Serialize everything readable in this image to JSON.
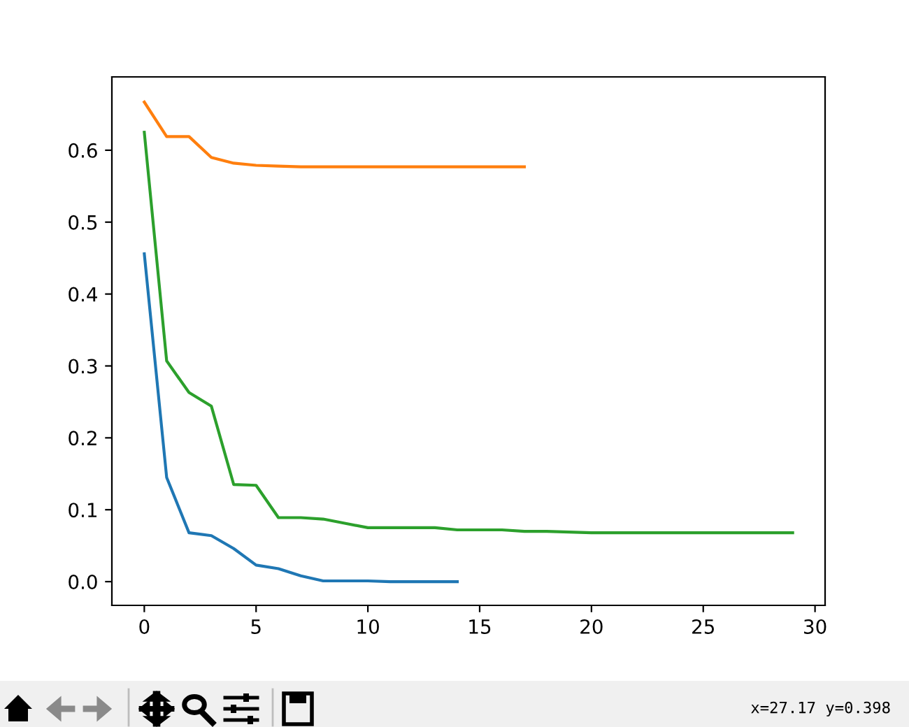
{
  "chart_data": {
    "type": "line",
    "series": [
      {
        "color": "#1f77b4",
        "x": [
          0,
          1,
          2,
          3,
          4,
          5,
          6,
          7,
          8,
          9,
          10,
          11,
          12,
          13,
          14
        ],
        "values": [
          0.456,
          0.145,
          0.068,
          0.064,
          0.046,
          0.023,
          0.018,
          0.008,
          0.001,
          0.001,
          0.001,
          0.0,
          0.0,
          0.0,
          0.0
        ]
      },
      {
        "color": "#ff7f0e",
        "x": [
          0,
          1,
          2,
          3,
          4,
          5,
          6,
          7,
          8,
          9,
          10,
          11,
          12,
          13,
          14,
          15,
          16,
          17
        ],
        "values": [
          0.667,
          0.619,
          0.619,
          0.59,
          0.582,
          0.579,
          0.578,
          0.577,
          0.577,
          0.577,
          0.577,
          0.577,
          0.577,
          0.577,
          0.577,
          0.577,
          0.577,
          0.577
        ]
      },
      {
        "color": "#2ca02c",
        "x": [
          0,
          1,
          2,
          3,
          4,
          5,
          6,
          7,
          8,
          9,
          10,
          11,
          12,
          13,
          14,
          15,
          16,
          17,
          18,
          19,
          20,
          21,
          22,
          23,
          24,
          25,
          26,
          27,
          28,
          29
        ],
        "values": [
          0.625,
          0.307,
          0.263,
          0.244,
          0.135,
          0.134,
          0.089,
          0.089,
          0.087,
          0.081,
          0.075,
          0.075,
          0.075,
          0.075,
          0.072,
          0.072,
          0.072,
          0.07,
          0.07,
          0.069,
          0.068,
          0.068,
          0.068,
          0.068,
          0.068,
          0.068,
          0.068,
          0.068,
          0.068,
          0.068
        ]
      }
    ],
    "xlim": [
      -1.45,
      30.45
    ],
    "ylim": [
      -0.033,
      0.702
    ],
    "xticks": [
      0,
      5,
      10,
      15,
      20,
      25,
      30
    ],
    "yticks": [
      {
        "value": 0,
        "label": "0.0"
      },
      0.1,
      0.2,
      0.3,
      0.4,
      0.5,
      0.6
    ],
    "line_style": "solid",
    "annotations": [
      "x=27.17 y=0.398"
    ]
  }
}
